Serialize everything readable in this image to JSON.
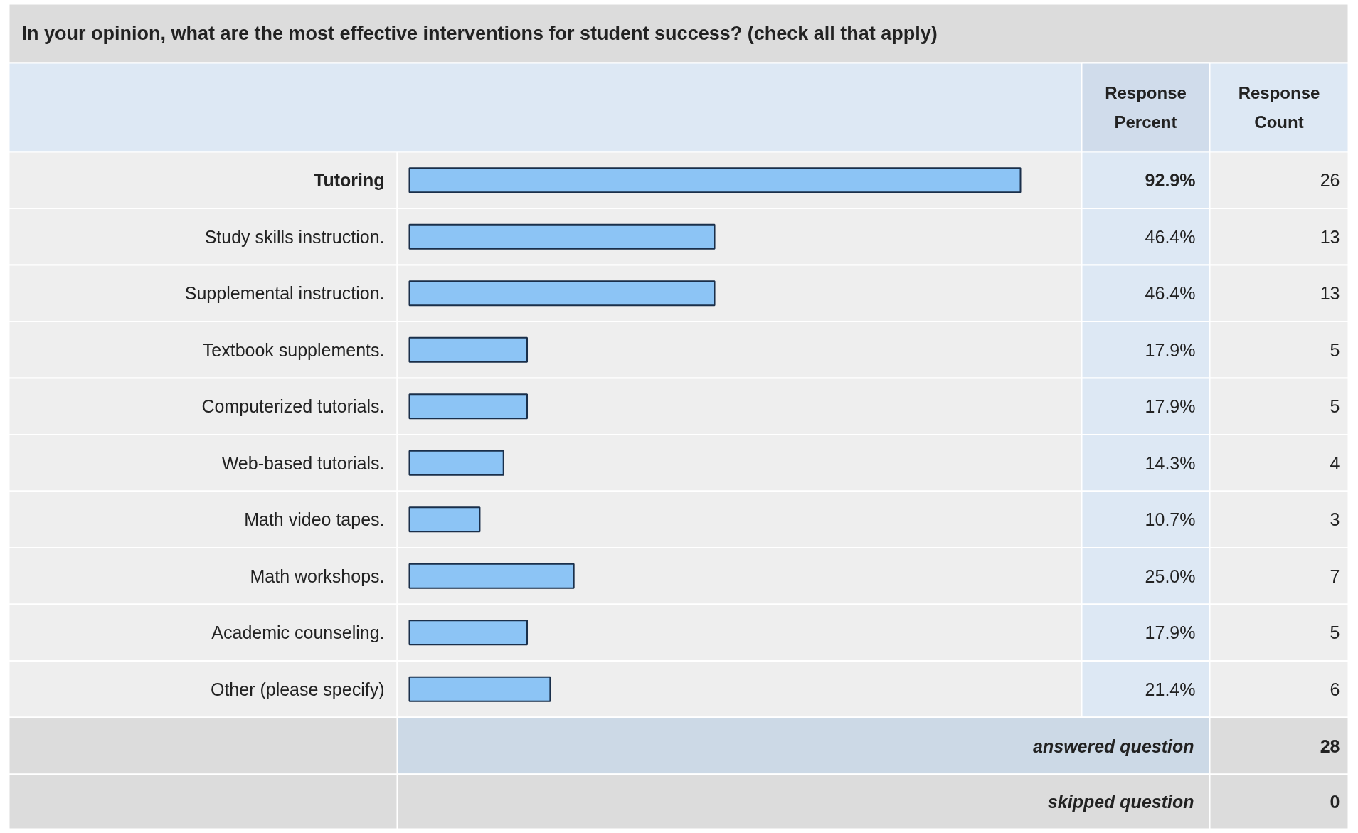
{
  "chart_data": {
    "type": "bar",
    "orientation": "horizontal",
    "title": "In your opinion, what are the most effective interventions for student success? (check all that apply)",
    "categories": [
      "Tutoring",
      "Study skills instruction.",
      "Supplemental instruction.",
      "Textbook supplements.",
      "Computerized tutorials.",
      "Web-based tutorials.",
      "Math video tapes.",
      "Math workshops.",
      "Academic counseling.",
      "Other (please specify)"
    ],
    "values": [
      92.9,
      46.4,
      46.4,
      17.9,
      17.9,
      14.3,
      10.7,
      25.0,
      17.9,
      21.4
    ],
    "value_labels": [
      "92.9%",
      "46.4%",
      "46.4%",
      "17.9%",
      "17.9%",
      "14.3%",
      "10.7%",
      "25.0%",
      "17.9%",
      "21.4%"
    ],
    "color": "#8cc4f5",
    "tick_labels": false,
    "annotations": [
      "Response\nPercent",
      "Response\nCount",
      "26",
      "13",
      "13",
      "5",
      "5",
      "4",
      "3",
      "7",
      "5",
      "6",
      "answered question",
      "28",
      "skipped question",
      "0"
    ]
  }
}
